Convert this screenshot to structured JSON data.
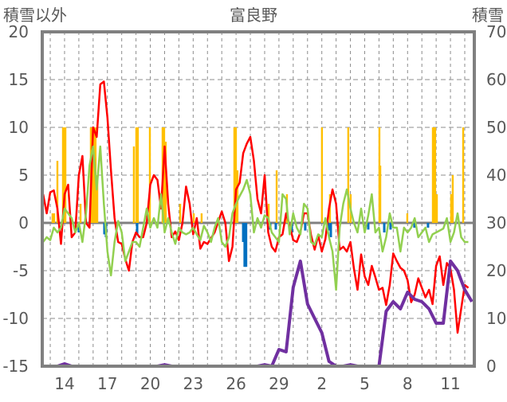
{
  "chart_data": {
    "type": "line",
    "title": "富良野",
    "ylabel_left": "積雪以外",
    "ylabel_right": "積雪",
    "ylim_left": [
      -15,
      20
    ],
    "yticks_left": [
      20,
      15,
      10,
      5,
      0,
      -5,
      -10,
      -15
    ],
    "ylim_right": [
      0,
      70
    ],
    "yticks_right": [
      70,
      60,
      50,
      40,
      30,
      20,
      10,
      0
    ],
    "x_unit": "days since the 14th",
    "xlim": [
      -1.56,
      28.67
    ],
    "xtick_positions": [
      0,
      3,
      6,
      9,
      12,
      15,
      18,
      21,
      24,
      27
    ],
    "xtick_labels": [
      "14",
      "17",
      "20",
      "23",
      "26",
      "29",
      "2",
      "5",
      "8",
      "11"
    ],
    "grid": true,
    "colors": {
      "red": "#FF0000",
      "green": "#92D050",
      "purple": "#7030A0",
      "orange": "#FFC000",
      "blue": "#0070C0",
      "axis": "#808080"
    },
    "series": [
      {
        "name": "red",
        "axis": "left",
        "x_start": -1.5,
        "x_step": 0.25,
        "values": [
          3,
          1,
          3.2,
          3.4,
          1.5,
          -2.2,
          3,
          4,
          -1.5,
          -1,
          5,
          7,
          0,
          -0.5,
          10,
          9,
          14.5,
          14.8,
          11,
          5.5,
          0.5,
          -2,
          -2.2,
          -3.8,
          -5,
          -2,
          -1,
          -1.5,
          -1.5,
          0,
          4,
          5,
          4.5,
          1.5,
          8,
          2,
          -1.5,
          -0.9,
          -1.8,
          0,
          3.8,
          2,
          -1.2,
          0.5,
          -2.7,
          -2,
          -2.2,
          -1.6,
          -1,
          0.1,
          1.2,
          0,
          -4,
          -2.5,
          3.5,
          4.2,
          7.3,
          8.3,
          9,
          6.5,
          2.5,
          1,
          5,
          -1,
          -2.5,
          -3,
          -1.5,
          -1.2,
          1,
          -0.3,
          -1.8,
          -2,
          -1,
          1,
          1,
          -1.3,
          -2.8,
          -1.3,
          -3,
          -1.7,
          1.5,
          3.5,
          2,
          -2.8,
          -2.5,
          -3,
          -2,
          -4.8,
          -7,
          -3.3,
          -5.6,
          -6.5,
          -4.5,
          -5.7,
          -7,
          -6.8,
          -8.6,
          -6.5,
          -3.2,
          -4,
          -4.7,
          -5,
          -6,
          -8.3,
          -7.5,
          -5.8,
          -6.8,
          -7.8,
          -7,
          -8.5,
          -4.5,
          -3.5,
          -6.5,
          -4.2,
          -4.8,
          -7,
          -11.5,
          -9,
          -6.5,
          -6.8
        ]
      },
      {
        "name": "green",
        "axis": "left",
        "x_start": -1.5,
        "x_step": 0.25,
        "values": [
          -2,
          -1.5,
          -1.8,
          -0.5,
          -1,
          -0.5,
          1.5,
          1,
          0.5,
          -1,
          0,
          -2,
          1,
          6,
          8,
          3.5,
          8,
          2,
          -3,
          -5.5,
          -2,
          0.2,
          -1,
          -4,
          -3,
          -2,
          -2,
          -2.5,
          -0.5,
          1.5,
          -0.5,
          0.5,
          -0.5,
          3,
          -1,
          0.5,
          -1,
          -2.2,
          -0.5,
          -1,
          -1.2,
          -1,
          -0.5,
          -1.2,
          -1.8,
          -0.3,
          -1,
          -2,
          -0.5,
          0.5,
          -2,
          -2.5,
          -1.5,
          1,
          2,
          2.8,
          3.5,
          4.5,
          3,
          -1,
          0.5,
          -0.5,
          0.8,
          0.5,
          -1,
          -1.5,
          -2,
          3,
          2.5,
          -1.2,
          1,
          -0.5,
          -1.2,
          2,
          1.5,
          -2,
          -2.3,
          -1.2,
          -1.5,
          0.5,
          -1.5,
          -3,
          -7,
          -0.5,
          2,
          3.5,
          1.5,
          0,
          -1,
          1.5,
          -1,
          0.8,
          3,
          -1,
          -0.5,
          -3,
          -1.5,
          1,
          -0.5,
          -0.5,
          -3,
          -0.5,
          -1,
          -0.5,
          0.5,
          -1.5,
          -1,
          -0.5,
          -2,
          -1.2,
          -1,
          -0.8,
          -0.6,
          0.5,
          -2,
          -1,
          1,
          -1.5,
          -2,
          -2
        ]
      },
      {
        "name": "purple",
        "axis": "right",
        "x_start": -1.5,
        "x_step": 0.5,
        "values": [
          0,
          0,
          0,
          0.5,
          0,
          0,
          0,
          0,
          0,
          0,
          0,
          0,
          0,
          0,
          0,
          0,
          0,
          0.3,
          0,
          0,
          0,
          0,
          0,
          0,
          0,
          0,
          0,
          0,
          0,
          0,
          0,
          0.3,
          0,
          3.5,
          3,
          16.5,
          22,
          13,
          10,
          7,
          1,
          0,
          0,
          0.3,
          0,
          0,
          0,
          0,
          11.5,
          13.5,
          12,
          15.5,
          14,
          13.5,
          12,
          9,
          9,
          22,
          20,
          16,
          13.5
        ]
      }
    ],
    "bars_positive": {
      "name": "orange",
      "axis": "left",
      "x": [
        -0.84,
        -0.73,
        -0.5,
        -0.11,
        0,
        0.06,
        1.12,
        1.84,
        1.95,
        2.06,
        2.17,
        2.29,
        4.85,
        5.02,
        5.13,
        5.97,
        6.86,
        6.97,
        7.08,
        8.09,
        9.04,
        9.59,
        11.88,
        11.99,
        12.1,
        14.28,
        14.84,
        15.56,
        18.01,
        18.57,
        19.85,
        20.02,
        22.03,
        22.09,
        23.98,
        25.77,
        25.88,
        25.93,
        26.05,
        27.05,
        27.16,
        27.89
      ],
      "values": [
        1,
        1,
        6.5,
        10,
        10,
        10,
        2,
        10,
        10,
        10,
        10,
        5,
        8,
        10,
        10,
        10,
        10,
        10,
        8.5,
        2,
        1,
        1,
        10,
        10,
        5.5,
        2,
        5.5,
        3,
        10,
        3,
        10,
        3,
        10,
        6,
        1,
        10,
        10,
        10,
        3,
        3,
        5,
        10
      ]
    },
    "bars_negative": {
      "name": "blue",
      "axis": "left",
      "x": [
        1.0,
        2.79,
        2.9,
        5.08,
        12.5,
        12.6,
        12.7,
        14.39,
        14.78,
        15.9,
        16.84,
        18.52,
        18.63,
        21.25,
        22.37,
        22.81,
        24.48,
        25.43
      ],
      "values": [
        -1,
        -1.2,
        -1.5,
        -1.3,
        -2,
        -4.6,
        -4.6,
        -0.7,
        -0.7,
        -1,
        -0.8,
        -0.8,
        -1.5,
        -0.7,
        -1,
        -0.7,
        -0.5,
        -0.5
      ]
    }
  }
}
